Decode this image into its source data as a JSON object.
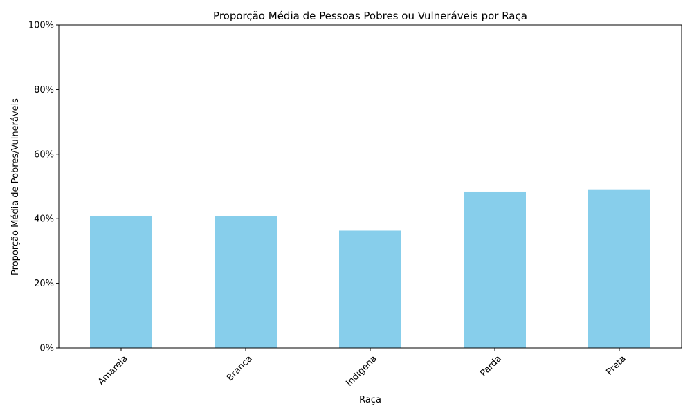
{
  "chart_data": {
    "type": "bar",
    "title": "Proporção Média de Pessoas Pobres ou Vulneráveis por Raça",
    "xlabel": "Raça",
    "ylabel": "Proporção Média de Pobres/Vulneráveis",
    "categories": [
      "Amarela",
      "Branca",
      "Indígena",
      "Parda",
      "Preta"
    ],
    "values": [
      0.409,
      0.407,
      0.363,
      0.484,
      0.491
    ],
    "ylim": [
      0,
      1
    ],
    "yticks": [
      0,
      0.2,
      0.4,
      0.6,
      0.8,
      1.0
    ],
    "ytick_labels": [
      "0%",
      "20%",
      "40%",
      "60%",
      "80%",
      "100%"
    ],
    "bar_color": "#87CEEB",
    "grid": false,
    "legend": false
  }
}
